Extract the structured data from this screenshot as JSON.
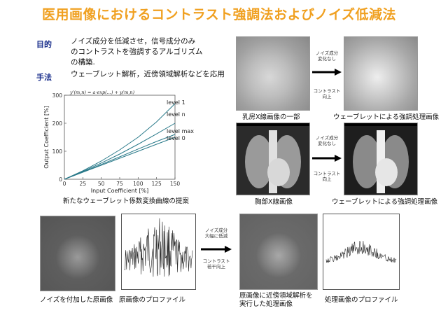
{
  "title": "医用画像におけるコントラスト強調法およびノイズ低減法",
  "purpose": {
    "label": "目的",
    "lines": [
      "ノイズ成分を低減させ，信号成分のみ",
      "のコントラストを強調するアルゴリズム",
      "の構築."
    ]
  },
  "method": {
    "label": "手法",
    "text": "ウェーブレット解析，近傍領域解析などを応用"
  },
  "chart": {
    "formula": "y'(m,n) = a·exp(...) + y(m,n)",
    "caption": "新たなウェーブレット係数変換曲線の提案"
  },
  "chart_data": {
    "type": "line",
    "xlabel": "Input Coefficient [%]",
    "ylabel": "Output Coefficient [%]",
    "xlim": [
      0,
      150
    ],
    "ylim": [
      0,
      300
    ],
    "xticks": [
      0,
      25,
      50,
      75,
      100,
      125,
      150
    ],
    "yticks": [
      0,
      100,
      200,
      300
    ],
    "x_tick_labels": [
      "0",
      "25",
      "50",
      "75",
      "100",
      "125",
      "150"
    ],
    "y_tick_labels": [
      "0",
      "100",
      "200",
      "300"
    ],
    "series": [
      {
        "name": "level 1",
        "x": [
          0,
          25,
          50,
          75,
          100,
          125,
          150
        ],
        "y": [
          0,
          30,
          65,
          105,
          150,
          205,
          270
        ]
      },
      {
        "name": "level n",
        "x": [
          0,
          25,
          50,
          75,
          100,
          125,
          150
        ],
        "y": [
          0,
          28,
          58,
          90,
          125,
          162,
          200
        ]
      },
      {
        "name": "level max",
        "x": [
          0,
          25,
          50,
          75,
          100,
          125,
          150
        ],
        "y": [
          0,
          26,
          53,
          80,
          108,
          135,
          160
        ]
      },
      {
        "name": "level 0",
        "x": [
          0,
          25,
          50,
          75,
          100,
          125,
          150
        ],
        "y": [
          0,
          25,
          50,
          75,
          100,
          125,
          150
        ]
      }
    ],
    "grid": false
  },
  "mammo": {
    "caption_left": "乳房X線画像の一部",
    "caption_right": "ウェーブレットによる強調処理画像",
    "arrow_top": [
      "ノイズ成分",
      "変化なし"
    ],
    "arrow_bottom": [
      "コントラスト",
      "向上"
    ]
  },
  "chest": {
    "caption_left": "胸部X線画像",
    "caption_right": "ウェーブレットによる強調処理画像",
    "arrow_top": [
      "ノイズ成分",
      "変化なし"
    ],
    "arrow_bottom": [
      "コントラスト",
      "向上"
    ]
  },
  "bottom": {
    "cap_noise": "ノイズを付加した原画像",
    "cap_profile": "原画像のプロファイル",
    "arrow_top": [
      "ノイズ成分",
      "大幅に低減"
    ],
    "arrow_bottom": [
      "コントラスト",
      "若干向上"
    ],
    "cap_processed": [
      "原画像に近傍領域解析を",
      "実行した処理画像"
    ],
    "cap_proc_profile": "処理画像のプロファイル"
  },
  "colors": {
    "title": "#f0a020",
    "label": "#1a2f8c",
    "curve": "#2a7a8a"
  }
}
